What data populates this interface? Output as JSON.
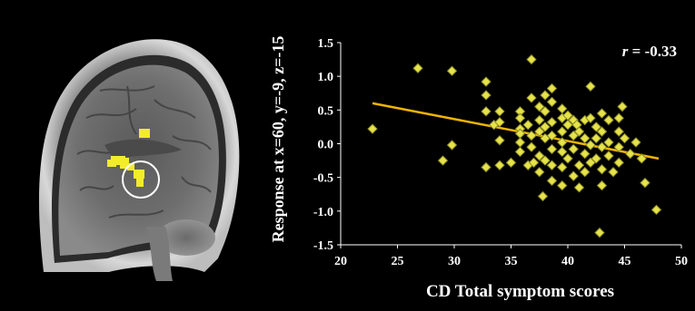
{
  "figure": {
    "brain_panel": {
      "view": "sagittal MRI slice",
      "activation_color": "#f3ec2a",
      "circle_color": "#ffffff"
    }
  },
  "chart_data": {
    "type": "scatter",
    "xlabel": "CD Total symptom scores",
    "ylabel": "Response at x=60, y=-9, z=-15",
    "annotation": {
      "r_label": "r",
      "r_value": "= -0.33"
    },
    "xlim": [
      20,
      50
    ],
    "ylim": [
      -1.5,
      1.5
    ],
    "xticks": [
      "20",
      "25",
      "30",
      "35",
      "40",
      "45",
      "50"
    ],
    "yticks": [
      "1.5",
      "1.0",
      "0.5",
      "0.0",
      "-0.5",
      "-1.0",
      "-1.5"
    ],
    "grid": false,
    "marker": "diamond",
    "colors": {
      "background": "#000000",
      "axes": "#ffffff",
      "text": "#ffffff",
      "points": "#e6e34a",
      "point_edge": "#8a8a2a",
      "fit_line": "#f0b400"
    },
    "fit_line": {
      "x": [
        22.8,
        48.0
      ],
      "y": [
        0.6,
        -0.22
      ]
    },
    "points": [
      [
        22.8,
        0.22
      ],
      [
        26.8,
        1.12
      ],
      [
        29.0,
        -0.25
      ],
      [
        29.8,
        1.08
      ],
      [
        29.8,
        -0.02
      ],
      [
        32.8,
        0.92
      ],
      [
        32.8,
        0.72
      ],
      [
        32.8,
        0.48
      ],
      [
        32.8,
        -0.35
      ],
      [
        33.5,
        0.28
      ],
      [
        34.0,
        0.48
      ],
      [
        34.0,
        0.05
      ],
      [
        34.0,
        -0.32
      ],
      [
        34.0,
        0.32
      ],
      [
        35.0,
        -0.28
      ],
      [
        35.8,
        0.48
      ],
      [
        35.8,
        0.38
      ],
      [
        35.8,
        0.22
      ],
      [
        35.8,
        0.15
      ],
      [
        35.8,
        0.02
      ],
      [
        35.8,
        -0.12
      ],
      [
        36.5,
        0.28
      ],
      [
        36.5,
        -0.32
      ],
      [
        36.8,
        1.25
      ],
      [
        36.8,
        0.68
      ],
      [
        36.8,
        0.12
      ],
      [
        36.8,
        -0.05
      ],
      [
        37.0,
        -0.28
      ],
      [
        37.5,
        0.55
      ],
      [
        37.5,
        0.35
      ],
      [
        37.5,
        0.18
      ],
      [
        37.5,
        -0.18
      ],
      [
        37.5,
        -0.42
      ],
      [
        37.8,
        -0.78
      ],
      [
        38.0,
        0.72
      ],
      [
        38.0,
        0.48
      ],
      [
        38.0,
        0.25
      ],
      [
        38.0,
        0.08
      ],
      [
        38.0,
        -0.25
      ],
      [
        38.6,
        0.82
      ],
      [
        38.6,
        0.62
      ],
      [
        38.6,
        0.32
      ],
      [
        38.6,
        0.12
      ],
      [
        38.6,
        -0.08
      ],
      [
        38.6,
        -0.32
      ],
      [
        38.6,
        -0.55
      ],
      [
        39.5,
        0.52
      ],
      [
        39.5,
        0.38
      ],
      [
        39.5,
        0.18
      ],
      [
        39.5,
        0.02
      ],
      [
        39.5,
        -0.12
      ],
      [
        39.5,
        -0.35
      ],
      [
        39.5,
        -0.62
      ],
      [
        40.0,
        0.28
      ],
      [
        40.0,
        0.42
      ],
      [
        40.0,
        -0.22
      ],
      [
        40.5,
        0.35
      ],
      [
        40.5,
        0.12
      ],
      [
        40.5,
        -0.08
      ],
      [
        40.5,
        -0.48
      ],
      [
        40.8,
        0.28
      ],
      [
        41.0,
        0.18
      ],
      [
        41.0,
        -0.32
      ],
      [
        41.0,
        -0.65
      ],
      [
        41.5,
        0.35
      ],
      [
        41.5,
        0.08
      ],
      [
        41.5,
        -0.15
      ],
      [
        41.5,
        -0.42
      ],
      [
        42.0,
        0.85
      ],
      [
        42.0,
        0.38
      ],
      [
        42.0,
        -0.02
      ],
      [
        42.0,
        -0.28
      ],
      [
        42.5,
        0.25
      ],
      [
        42.5,
        0.08
      ],
      [
        42.5,
        -0.22
      ],
      [
        42.8,
        -1.32
      ],
      [
        43.0,
        0.45
      ],
      [
        43.0,
        0.18
      ],
      [
        43.0,
        -0.05
      ],
      [
        43.0,
        -0.38
      ],
      [
        43.0,
        -0.62
      ],
      [
        43.6,
        0.35
      ],
      [
        43.6,
        0.02
      ],
      [
        43.6,
        -0.18
      ],
      [
        44.0,
        -0.42
      ],
      [
        44.5,
        0.38
      ],
      [
        44.5,
        0.18
      ],
      [
        44.5,
        -0.05
      ],
      [
        44.5,
        -0.28
      ],
      [
        44.8,
        0.55
      ],
      [
        45.0,
        0.08
      ],
      [
        45.5,
        -0.15
      ],
      [
        46.0,
        0.02
      ],
      [
        46.5,
        -0.22
      ],
      [
        46.8,
        -0.58
      ],
      [
        47.8,
        -0.98
      ]
    ]
  }
}
